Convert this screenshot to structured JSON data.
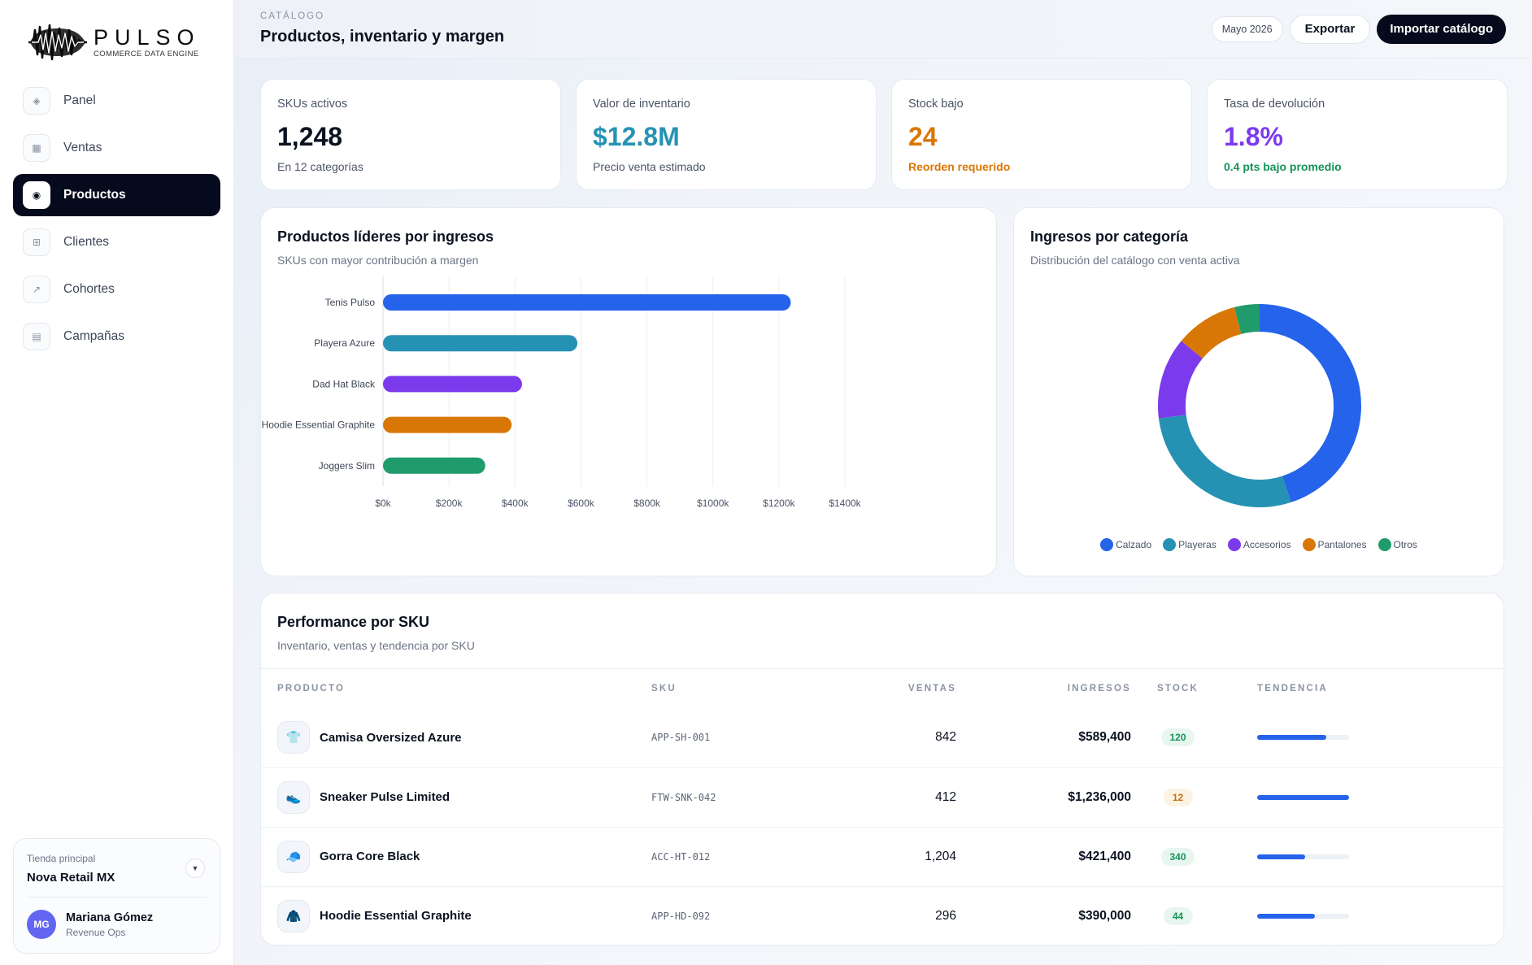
{
  "brand": {
    "name": "PULSO",
    "tagline": "COMMERCE DATA ENGINE"
  },
  "sidebar": {
    "items": [
      {
        "label": "Panel",
        "icon": "diamond-icon",
        "glyph": "◈",
        "active": false
      },
      {
        "label": "Ventas",
        "icon": "grid-icon",
        "glyph": "▦",
        "active": false
      },
      {
        "label": "Productos",
        "icon": "box-icon",
        "glyph": "◉",
        "active": true
      },
      {
        "label": "Clientes",
        "icon": "users-icon",
        "glyph": "⊞",
        "active": false
      },
      {
        "label": "Cohortes",
        "icon": "trend-icon",
        "glyph": "↗",
        "active": false
      },
      {
        "label": "Campañas",
        "icon": "megaphone-icon",
        "glyph": "▤",
        "active": false
      }
    ],
    "store": {
      "label": "Tienda principal",
      "name": "Nova Retail MX"
    },
    "user": {
      "initials": "MG",
      "name": "Mariana Gómez",
      "role": "Revenue Ops"
    }
  },
  "header": {
    "eyebrow": "CATÁLOGO",
    "title": "Productos, inventario y margen",
    "date_pill": "Mayo 2026",
    "export_label": "Exportar",
    "import_label": "Importar catálogo"
  },
  "kpis": [
    {
      "label": "SKUs activos",
      "value": "1,248",
      "sub": "En 12 categorías",
      "value_color": "#0b1220",
      "sub_color": "#4b5466"
    },
    {
      "label": "Valor de inventario",
      "value": "$12.8M",
      "sub": "Precio venta estimado",
      "value_color": "#2592b4",
      "sub_color": "#4b5466"
    },
    {
      "label": "Stock bajo",
      "value": "24",
      "sub": "Reorden requerido",
      "value_color": "#d97706",
      "sub_color": "#d97706"
    },
    {
      "label": "Tasa de devolución",
      "value": "1.8%",
      "sub": "0.4 pts bajo promedio",
      "value_color": "#7c3aed",
      "sub_color": "#16925a"
    }
  ],
  "bar_chart": {
    "title": "Productos líderes por ingresos",
    "subtitle": "SKUs con mayor contribución a margen"
  },
  "donut_chart": {
    "title": "Ingresos por categoría",
    "subtitle": "Distribución del catálogo con venta activa"
  },
  "chart_data": [
    {
      "type": "bar",
      "orientation": "horizontal",
      "categories": [
        "Tenis Pulso",
        "Playera Azure",
        "Dad Hat Black",
        "Hoodie Essential Graphite",
        "Joggers Slim"
      ],
      "values": [
        1236000,
        589400,
        421400,
        390000,
        310000
      ],
      "colors": [
        "#2563eb",
        "#2592b4",
        "#7c3aed",
        "#d97706",
        "#209b6b"
      ],
      "xlim": [
        0,
        1400000
      ],
      "xticks": [
        0,
        200000,
        400000,
        600000,
        800000,
        1000000,
        1200000,
        1400000
      ],
      "xtick_labels": [
        "$0k",
        "$200k",
        "$400k",
        "$600k",
        "$800k",
        "$1000k",
        "$1200k",
        "$1400k"
      ],
      "grid": "vertical",
      "title": "Productos líderes por ingresos",
      "subtitle": "SKUs con mayor contribución a margen"
    },
    {
      "type": "pie",
      "variant": "donut",
      "labels": [
        "Calzado",
        "Playeras",
        "Accesorios",
        "Pantalones",
        "Otros"
      ],
      "values": [
        45,
        28,
        13,
        10,
        4
      ],
      "colors": [
        "#2563eb",
        "#2592b4",
        "#7c3aed",
        "#d97706",
        "#209b6b"
      ],
      "legend": "bottom",
      "title": "Ingresos por categoría",
      "subtitle": "Distribución del catálogo con venta activa"
    }
  ],
  "table": {
    "title": "Performance por SKU",
    "subtitle": "Inventario, ventas y tendencia por SKU",
    "columns": [
      "PRODUCTO",
      "SKU",
      "VENTAS",
      "INGRESOS",
      "STOCK",
      "TENDENCIA"
    ],
    "rows": [
      {
        "icon": "shirt-icon",
        "glyph": "👕",
        "name": "Camisa Oversized Azure",
        "sku": "APP-SH-001",
        "ventas": "842",
        "ingresos": "$589,400",
        "stock": "120",
        "stock_status": "ok",
        "trend": 0.75
      },
      {
        "icon": "sneaker-icon",
        "glyph": "👟",
        "name": "Sneaker Pulse Limited",
        "sku": "FTW-SNK-042",
        "ventas": "412",
        "ingresos": "$1,236,000",
        "stock": "12",
        "stock_status": "low",
        "trend": 1.0
      },
      {
        "icon": "cap-icon",
        "glyph": "🧢",
        "name": "Gorra Core Black",
        "sku": "ACC-HT-012",
        "ventas": "1,204",
        "ingresos": "$421,400",
        "stock": "340",
        "stock_status": "ok",
        "trend": 0.52
      },
      {
        "icon": "hoodie-icon",
        "glyph": "🧥",
        "name": "Hoodie Essential Graphite",
        "sku": "APP-HD-092",
        "ventas": "296",
        "ingresos": "$390,000",
        "stock": "44",
        "stock_status": "ok",
        "trend": 0.63
      }
    ]
  }
}
